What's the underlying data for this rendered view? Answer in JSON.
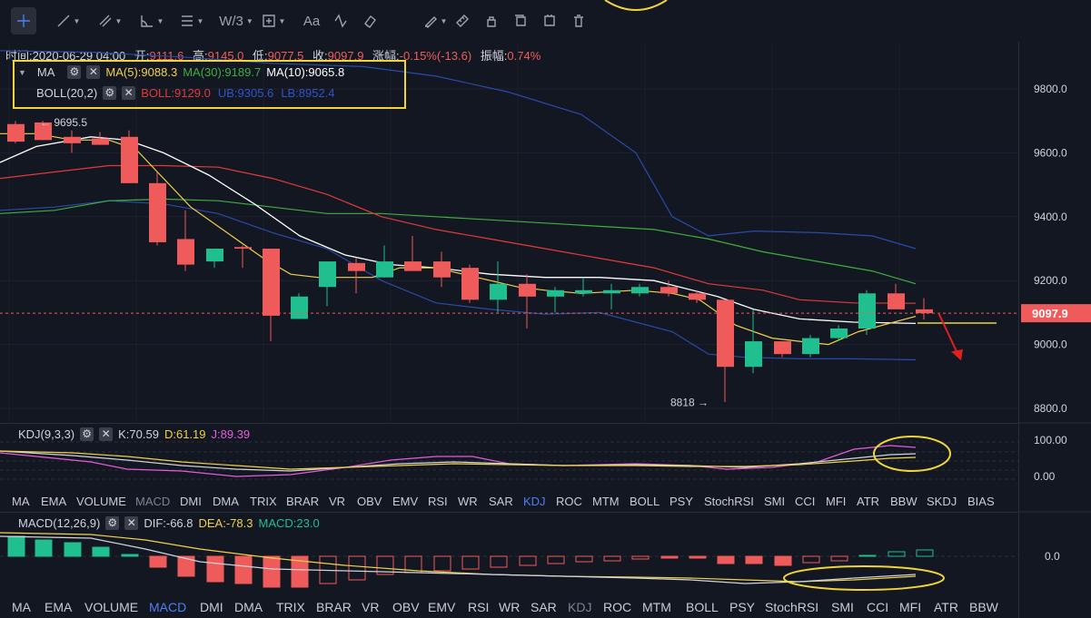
{
  "toolbar": {
    "tools": [
      {
        "name": "crosshair-icon",
        "active": true
      },
      {
        "name": "trendline-icon",
        "caret": true
      },
      {
        "name": "multi-line-icon",
        "caret": true
      },
      {
        "name": "angle-icon",
        "caret": true
      },
      {
        "name": "fib-icon",
        "caret": true
      },
      {
        "name": "wave-icon",
        "text": "W/3",
        "caret": true
      },
      {
        "name": "measure-icon",
        "caret": true
      },
      {
        "name": "text-icon",
        "text": "Aa"
      },
      {
        "name": "pattern-icon"
      },
      {
        "name": "eraser-icon"
      },
      {
        "name": "brush-icon",
        "caret": true
      },
      {
        "name": "ruler-icon"
      },
      {
        "name": "lock-icon"
      },
      {
        "name": "clone-icon"
      },
      {
        "name": "hide-icon"
      },
      {
        "name": "trash-icon"
      }
    ]
  },
  "info": {
    "time_label": "时间:",
    "time": "2020-06-29 04:00",
    "open_label": "开:",
    "open": "9111.6",
    "high_label": "高:",
    "high": "9145.0",
    "low_label": "低:",
    "low": "9077.5",
    "close_label": "收:",
    "close": "9097.9",
    "change_label": "涨幅:",
    "change": "-0.15%(-13.6)",
    "amp_label": "振幅:",
    "amp": "0.74%"
  },
  "legend": {
    "ma_name": "MA",
    "ma5": "MA(5):9088.3",
    "ma30": "MA(30):9189.7",
    "ma10": "MA(10):9065.8",
    "boll_name": "BOLL(20,2)",
    "boll": "BOLL:9129.0",
    "ub": "UB:9305.6",
    "lb": "LB:8952.4"
  },
  "price_axis": {
    "ticks": [
      "9800.0",
      "9600.0",
      "9400.0",
      "9200.0",
      "9000.0",
      "8800.0"
    ],
    "current": "9097.9",
    "high_mark": "9695.5",
    "low_mark": "8818"
  },
  "kdj": {
    "name": "KDJ(9,3,3)",
    "k": "K:70.59",
    "d": "D:61.19",
    "j": "J:89.39",
    "ticks": [
      "100.00",
      "0.00"
    ]
  },
  "macd": {
    "name": "MACD(12,26,9)",
    "dif": "DIF:-66.8",
    "dea": "DEA:-78.3",
    "macd": "MACD:23.0",
    "ticks": [
      "0.0"
    ]
  },
  "tabs_kdj": [
    "MA",
    "EMA",
    "VOLUME",
    "MACD",
    "DMI",
    "DMA",
    "TRIX",
    "BRAR",
    "VR",
    "OBV",
    "EMV",
    "RSI",
    "WR",
    "SAR",
    "KDJ",
    "ROC",
    "MTM",
    "BOLL",
    "PSY",
    "StochRSI",
    "SMI",
    "CCI",
    "MFI",
    "ATR",
    "BBW",
    "SKDJ",
    "BIAS"
  ],
  "tabs_kdj_selected": "KDJ",
  "tabs_kdj_dim": "MACD",
  "tabs_macd": [
    "MA",
    "EMA",
    "VOLUME",
    "MACD",
    "DMI",
    "DMA",
    "TRIX",
    "BRAR",
    "VR",
    "OBV",
    "EMV",
    "RSI",
    "WR",
    "SAR",
    "KDJ",
    "ROC",
    "MTM",
    "BOLL",
    "PSY",
    "StochRSI",
    "SMI",
    "CCI",
    "MFI",
    "ATR",
    "BBW"
  ],
  "tabs_macd_selected": "MACD",
  "tabs_macd_dim": "KDJ",
  "colors": {
    "bg": "#131722",
    "up": "#1fbf8f",
    "down": "#ef5b5b",
    "ma5": "#f1d24a",
    "ma10": "#ffffff",
    "ma30": "#3fae3f",
    "boll_mid": "#e23a3a",
    "boll_band": "#2a4aa8",
    "annotation": "#f0d43a",
    "arrow": "#e01f1f"
  }
}
